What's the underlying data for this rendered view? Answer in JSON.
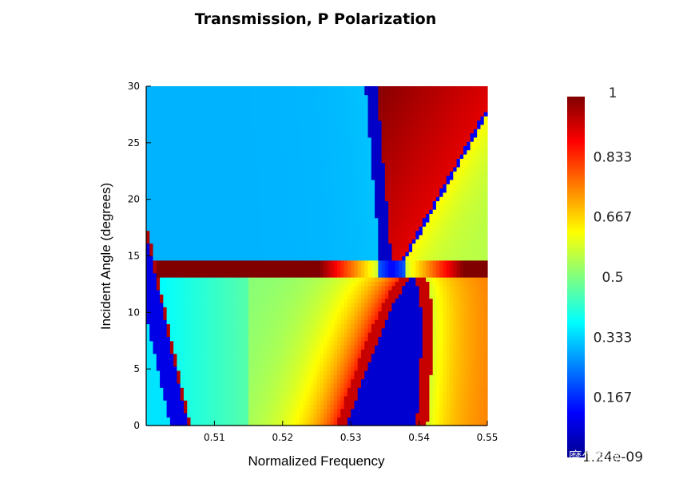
{
  "chart_data": {
    "type": "heatmap",
    "title": "Transmission, P Polarization",
    "xlabel": "Normalized Frequency",
    "ylabel": "Incident Angle (degrees)",
    "xlim": [
      0.5,
      0.55
    ],
    "ylim": [
      0,
      30
    ],
    "x_ticks": [
      "0.51",
      "0.52",
      "0.53",
      "0.54",
      "0.55"
    ],
    "y_ticks": [
      "0",
      "5",
      "10",
      "15",
      "20",
      "25",
      "30"
    ],
    "colormap": "jet",
    "colorbar": {
      "range": [
        1.24e-09,
        1
      ],
      "tick_labels": [
        "1",
        "0.833",
        "0.667",
        "0.5",
        "0.333",
        "0.167",
        "1.24e-09"
      ],
      "tick_values": [
        1,
        0.833,
        0.667,
        0.5,
        0.333,
        0.167,
        0
      ]
    },
    "features": [
      {
        "name": "upper gap band (low transmission)",
        "x_at_0deg": null,
        "x_at_30deg": 0.5335,
        "x_at_15deg": 0.5355
      },
      {
        "name": "lower gap band (low transmission)",
        "x_range_at_0deg": [
          0.5285,
          0.5395
        ],
        "closes_at_deg": 13
      },
      {
        "name": "left low-transmission branch",
        "x_at_0deg": 0.5065,
        "x_at_18deg": 0.5
      }
    ]
  },
  "watermark": {
    "text": "知乎 @摩尔芯创"
  }
}
